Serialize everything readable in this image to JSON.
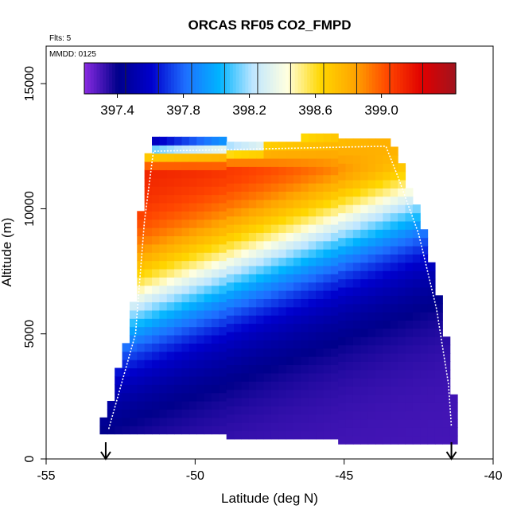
{
  "chart_data": {
    "type": "heatmap",
    "title": "ORCAS RF05 CO2_FMPD",
    "annotations": [
      "Flts: 5",
      "MMDD: 0125"
    ],
    "xlabel": "Latitude (deg N)",
    "ylabel": "Altitude (m)",
    "xlim": [
      -55,
      -40
    ],
    "ylim": [
      0,
      16500
    ],
    "x_ticks": [
      -55,
      -50,
      -45,
      -40
    ],
    "x_tick_labels": [
      "-55",
      "-50",
      "-45",
      "-40"
    ],
    "y_ticks": [
      0,
      5000,
      10000,
      15000
    ],
    "y_tick_labels": [
      "0",
      "5000",
      "10000",
      "15000"
    ],
    "colorbar": {
      "min": 397.2,
      "max": 399.45,
      "ticks": [
        397.4,
        397.8,
        398.2,
        398.6,
        399.0
      ],
      "tick_labels": [
        "397.4",
        "397.8",
        "398.2",
        "398.6",
        "399.0"
      ],
      "divisions": [
        397.45,
        397.65,
        397.85,
        398.05,
        398.25,
        398.45,
        398.65,
        398.85,
        399.05,
        399.25
      ],
      "colors": [
        "#8a2be2",
        "#00008b",
        "#0000cd",
        "#1e6fff",
        "#00b4ff",
        "#bfe6ff",
        "#ffffe0",
        "#ffd700",
        "#ffa500",
        "#ff4500",
        "#e00000",
        "#a0141e"
      ]
    },
    "flight_track": [
      {
        "lat": -52.9,
        "alt": 1200
      },
      {
        "lat": -52.0,
        "alt": 5000
      },
      {
        "lat": -51.7,
        "alt": 9500
      },
      {
        "lat": -51.4,
        "alt": 12300
      },
      {
        "lat": -43.6,
        "alt": 12500
      },
      {
        "lat": -43.2,
        "alt": 11300
      },
      {
        "lat": -42.5,
        "alt": 9000
      },
      {
        "lat": -41.9,
        "alt": 6000
      },
      {
        "lat": -41.5,
        "alt": 3000
      },
      {
        "lat": -41.4,
        "alt": 1300
      }
    ],
    "markers": [
      {
        "lat": -53.0,
        "type": "arrow-down"
      },
      {
        "lat": -41.4,
        "type": "arrow-down"
      }
    ]
  }
}
